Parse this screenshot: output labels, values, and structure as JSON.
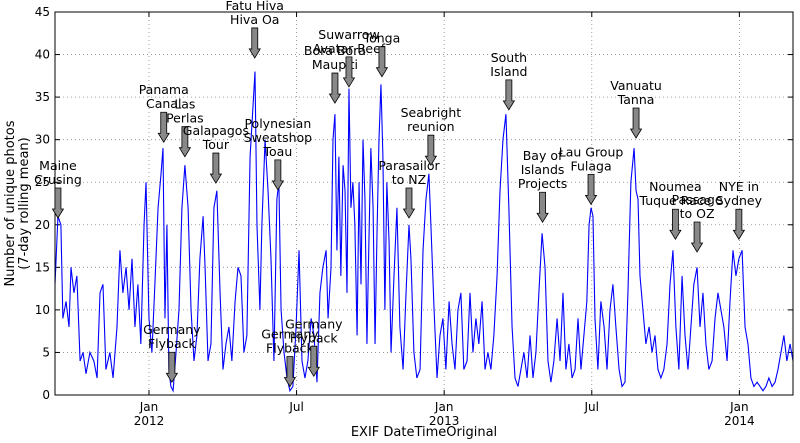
{
  "chart_data": {
    "type": "line",
    "xlabel": "EXIF DateTimeOriginal",
    "ylabel": [
      "Number of unique photos",
      "(7-day rolling mean)"
    ],
    "xlim": [
      -3.82,
      26.18
    ],
    "ylim": [
      0,
      45
    ],
    "yticks": [
      0,
      5,
      10,
      15,
      20,
      25,
      30,
      35,
      40,
      45
    ],
    "xticks": [
      {
        "value": 0,
        "label": "Jan",
        "year": "2012"
      },
      {
        "value": 6,
        "label": "Jul"
      },
      {
        "value": 12,
        "label": "Jan",
        "year": "2013"
      },
      {
        "value": 18,
        "label": "Jul"
      },
      {
        "value": 24,
        "label": "Jan",
        "year": "2014"
      }
    ],
    "grid": true,
    "series": [
      {
        "color": "#0000ff",
        "x": [
          -3.82,
          -3.7,
          -3.58,
          -3.5,
          -3.37,
          -3.25,
          -3.17,
          -3.05,
          -2.93,
          -2.8,
          -2.68,
          -2.56,
          -2.4,
          -2.24,
          -2.11,
          -1.99,
          -1.87,
          -1.75,
          -1.59,
          -1.46,
          -1.3,
          -1.18,
          -1.06,
          -0.93,
          -0.81,
          -0.69,
          -0.57,
          -0.45,
          -0.33,
          -0.2,
          -0.12,
          0,
          0.12,
          0.24,
          0.37,
          0.49,
          0.57,
          0.65,
          0.73,
          0.81,
          0.89,
          0.98,
          1.1,
          1.22,
          1.34,
          1.46,
          1.59,
          1.71,
          1.83,
          1.95,
          2.07,
          2.2,
          2.28,
          2.4,
          2.52,
          2.64,
          2.76,
          2.89,
          3.01,
          3.13,
          3.25,
          3.37,
          3.5,
          3.62,
          3.74,
          3.86,
          3.98,
          4.11,
          4.23,
          4.31,
          4.39,
          4.51,
          4.59,
          4.72,
          4.84,
          4.96,
          5.08,
          5.2,
          5.28,
          5.37,
          5.49,
          5.61,
          5.73,
          5.85,
          5.98,
          6.1,
          6.22,
          6.34,
          6.46,
          6.59,
          6.71,
          6.83,
          6.95,
          7.07,
          7.2,
          7.28,
          7.4,
          7.48,
          7.56,
          7.64,
          7.72,
          7.8,
          7.89,
          7.97,
          8.05,
          8.13,
          8.21,
          8.29,
          8.37,
          8.46,
          8.54,
          8.62,
          8.7,
          8.78,
          8.86,
          8.94,
          9.02,
          9.11,
          9.19,
          9.27,
          9.35,
          9.43,
          9.51,
          9.59,
          9.67,
          9.76,
          9.84,
          9.96,
          10.08,
          10.2,
          10.33,
          10.45,
          10.57,
          10.65,
          10.77,
          10.89,
          11.02,
          11.14,
          11.26,
          11.38,
          11.46,
          11.59,
          11.71,
          11.83,
          11.95,
          12.07,
          12.2,
          12.32,
          12.44,
          12.56,
          12.68,
          12.8,
          12.93,
          13.05,
          13.17,
          13.29,
          13.41,
          13.54,
          13.66,
          13.78,
          13.9,
          14.02,
          14.15,
          14.27,
          14.39,
          14.51,
          14.63,
          14.76,
          14.88,
          15.0,
          15.12,
          15.24,
          15.37,
          15.49,
          15.61,
          15.73,
          15.85,
          15.98,
          16.1,
          16.22,
          16.34,
          16.46,
          16.59,
          16.71,
          16.83,
          16.95,
          17.07,
          17.2,
          17.32,
          17.44,
          17.56,
          17.68,
          17.8,
          17.89,
          17.97,
          18.05,
          18.13,
          18.25,
          18.37,
          18.5,
          18.62,
          18.74,
          18.86,
          18.98,
          19.11,
          19.23,
          19.35,
          19.47,
          19.59,
          19.72,
          19.8,
          19.88,
          19.96,
          20.08,
          20.2,
          20.33,
          20.45,
          20.57,
          20.69,
          20.81,
          20.93,
          21.06,
          21.18,
          21.3,
          21.42,
          21.54,
          21.67,
          21.79,
          21.91,
          22.03,
          22.15,
          22.28,
          22.4,
          22.52,
          22.64,
          22.76,
          22.89,
          23.01,
          23.13,
          23.25,
          23.37,
          23.5,
          23.62,
          23.74,
          23.86,
          23.98,
          24.11,
          24.23,
          24.35,
          24.47,
          24.59,
          24.72,
          24.84,
          24.96,
          25.08,
          25.2,
          25.33,
          25.45,
          25.57,
          25.69,
          25.81,
          25.93,
          26.06,
          26.18
        ],
        "values": [
          13,
          21,
          20,
          9,
          11,
          8,
          15,
          12,
          14,
          4,
          5,
          2.5,
          5,
          4,
          2,
          12,
          13,
          3,
          5,
          2,
          8,
          17,
          12,
          15,
          10,
          16,
          8,
          13,
          6,
          20,
          25,
          9,
          5,
          13,
          22,
          26,
          29,
          9,
          20,
          3,
          1,
          0.5,
          5,
          10,
          22,
          27,
          22,
          10,
          4,
          7,
          16,
          21,
          15,
          4,
          6,
          22,
          24,
          12,
          3,
          6,
          8,
          4,
          11,
          15,
          14,
          5,
          7,
          28,
          34,
          38,
          20,
          10,
          20,
          30,
          24,
          16,
          4,
          23,
          25,
          10,
          5,
          2,
          0.5,
          1,
          8,
          17,
          4,
          2,
          4,
          9,
          7,
          1.5,
          12,
          15,
          17,
          9,
          15,
          30,
          33,
          17,
          28,
          14,
          27,
          24,
          12,
          36,
          22,
          25,
          20,
          7,
          25,
          13,
          30,
          23,
          6,
          18,
          29,
          22,
          6,
          19,
          30,
          36.5,
          28,
          10,
          25,
          18,
          5,
          14,
          22,
          8,
          3,
          12,
          20,
          16,
          5,
          2,
          3,
          17,
          23,
          26,
          20,
          10,
          2,
          7,
          9,
          3,
          11,
          6,
          3,
          10,
          12,
          3,
          4,
          12,
          5,
          9,
          6,
          11,
          3,
          5,
          3,
          7,
          14,
          24,
          30,
          33,
          22,
          8,
          2,
          1,
          3,
          5,
          2,
          7,
          2,
          5,
          12,
          19,
          15,
          4,
          1.5,
          4,
          9,
          4,
          12,
          3,
          6,
          2,
          3,
          9,
          3,
          7,
          11,
          20,
          22,
          21,
          9,
          3,
          11,
          8,
          3,
          10,
          13,
          8,
          3,
          1,
          1.5,
          12,
          25,
          29,
          24,
          23,
          14,
          10,
          6,
          8,
          5,
          7,
          3,
          2,
          3,
          6,
          13,
          17,
          8,
          3,
          14,
          7,
          3,
          8,
          13,
          15,
          8,
          12,
          6,
          3,
          4,
          9,
          12,
          10,
          8,
          4,
          11,
          17,
          14,
          16,
          17,
          8,
          6,
          2,
          1,
          1.5,
          1,
          0.5,
          1,
          2,
          1,
          1.5,
          3,
          5,
          7,
          4,
          6,
          4
        ]
      }
    ],
    "annotations": [
      {
        "lines": [
          "Maine",
          "Crusing"
        ],
        "x": -3.7,
        "y": 20.8
      },
      {
        "lines": [
          "Panama",
          "Canal"
        ],
        "x": 0.6,
        "y": 29.7
      },
      {
        "lines": [
          "Las",
          "Perlas"
        ],
        "x": 1.46,
        "y": 28
      },
      {
        "lines": [
          "Galapagos",
          "Tour"
        ],
        "x": 2.72,
        "y": 24.9
      },
      {
        "lines": [
          "Fatu Hiva",
          "Hiva Oa"
        ],
        "x": 4.3,
        "y": 39.6
      },
      {
        "lines": [
          "Polynesian",
          "Sweatshop",
          "Toau"
        ],
        "x": 5.24,
        "y": 24.1
      },
      {
        "lines": [
          "Germany",
          "Flyback"
        ],
        "x": 0.93,
        "y": 1.5
      },
      {
        "lines": [
          "Germany",
          "Flyback"
        ],
        "x": 5.73,
        "y": 1.0
      },
      {
        "lines": [
          "Germany",
          "Flyback"
        ],
        "x": 6.7,
        "y": 2.2
      },
      {
        "lines": [
          "Bora Bora",
          "Maupiti"
        ],
        "x": 7.56,
        "y": 34.3
      },
      {
        "lines": [
          "Suwarrow",
          "Avatar Reef"
        ],
        "x": 8.13,
        "y": 36.2
      },
      {
        "lines": [
          "Tonga"
        ],
        "x": 9.47,
        "y": 37.4
      },
      {
        "lines": [
          "Parasailor",
          "to NZ"
        ],
        "x": 10.57,
        "y": 20.8
      },
      {
        "lines": [
          "Seabright",
          "reunion"
        ],
        "x": 11.46,
        "y": 27
      },
      {
        "lines": [
          "South",
          "Island"
        ],
        "x": 14.63,
        "y": 33.5
      },
      {
        "lines": [
          "Bay of",
          "Islands",
          "Projects"
        ],
        "x": 16.0,
        "y": 20.3
      },
      {
        "lines": [
          "Lau Group",
          "Fulaga"
        ],
        "x": 17.97,
        "y": 22.4
      },
      {
        "lines": [
          "Vanuatu",
          "Tanna"
        ],
        "x": 19.8,
        "y": 30.2
      },
      {
        "lines": [
          "Noumea",
          "Tuque Race"
        ],
        "x": 21.4,
        "y": 18.3
      },
      {
        "lines": [
          "Passage",
          "to OZ"
        ],
        "x": 22.28,
        "y": 16.8
      },
      {
        "lines": [
          "NYE in",
          "Sydney"
        ],
        "x": 23.98,
        "y": 18.3
      }
    ]
  }
}
